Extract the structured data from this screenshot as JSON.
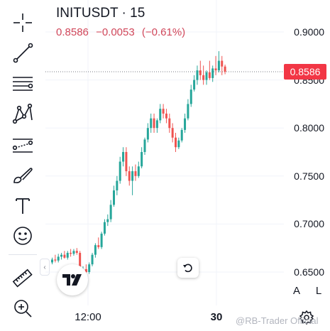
{
  "header": {
    "symbol": "INITUSDT · 15",
    "last": "0.8586",
    "change": "−0.0053",
    "change_pct": "(−0.61%)",
    "change_color": "#d1475a"
  },
  "price_axis": {
    "ticks": [
      "0.9000",
      "0.8500",
      "0.8000",
      "0.7500",
      "0.7000",
      "0.6500"
    ],
    "last_price_label": "0.8586",
    "last_price_color": "#f23645"
  },
  "time_axis": {
    "labels": [
      {
        "text": "12:00",
        "bold": false
      },
      {
        "text": "30",
        "bold": true
      }
    ]
  },
  "toolbar": {
    "tools": [
      "crosshair-icon",
      "trend-line-icon",
      "fib-retracement-icon",
      "pattern-icon",
      "prediction-icon",
      "brush-icon",
      "text-icon",
      "emoji-icon",
      "ruler-icon",
      "zoom-in-icon"
    ]
  },
  "buttons": {
    "auto_scale": "A",
    "log_scale": "L"
  },
  "watermark": "@RB-Trader Official",
  "colors": {
    "up": "#26a69a",
    "down": "#ef5350"
  },
  "chart_data": {
    "type": "candlestick",
    "ylim": [
      0.6,
      0.92
    ],
    "candles": [
      [
        0.66,
        0.665,
        0.658,
        0.663
      ],
      [
        0.663,
        0.668,
        0.66,
        0.662
      ],
      [
        0.662,
        0.669,
        0.66,
        0.666
      ],
      [
        0.666,
        0.67,
        0.663,
        0.668
      ],
      [
        0.668,
        0.672,
        0.664,
        0.665
      ],
      [
        0.665,
        0.672,
        0.663,
        0.67
      ],
      [
        0.67,
        0.674,
        0.666,
        0.669
      ],
      [
        0.669,
        0.674,
        0.667,
        0.672
      ],
      [
        0.672,
        0.675,
        0.668,
        0.67
      ],
      [
        0.67,
        0.672,
        0.64,
        0.645
      ],
      [
        0.645,
        0.656,
        0.642,
        0.653
      ],
      [
        0.653,
        0.658,
        0.648,
        0.65
      ],
      [
        0.65,
        0.66,
        0.648,
        0.658
      ],
      [
        0.658,
        0.67,
        0.656,
        0.668
      ],
      [
        0.668,
        0.68,
        0.665,
        0.678
      ],
      [
        0.678,
        0.686,
        0.674,
        0.676
      ],
      [
        0.676,
        0.692,
        0.674,
        0.69
      ],
      [
        0.69,
        0.705,
        0.688,
        0.702
      ],
      [
        0.702,
        0.71,
        0.698,
        0.705
      ],
      [
        0.705,
        0.725,
        0.702,
        0.72
      ],
      [
        0.72,
        0.74,
        0.718,
        0.735
      ],
      [
        0.735,
        0.75,
        0.73,
        0.745
      ],
      [
        0.745,
        0.77,
        0.742,
        0.765
      ],
      [
        0.765,
        0.78,
        0.76,
        0.775
      ],
      [
        0.775,
        0.78,
        0.75,
        0.755
      ],
      [
        0.755,
        0.76,
        0.74,
        0.745
      ],
      [
        0.745,
        0.76,
        0.73,
        0.755
      ],
      [
        0.755,
        0.762,
        0.745,
        0.75
      ],
      [
        0.75,
        0.765,
        0.748,
        0.76
      ],
      [
        0.76,
        0.78,
        0.758,
        0.775
      ],
      [
        0.775,
        0.79,
        0.772,
        0.788
      ],
      [
        0.788,
        0.805,
        0.785,
        0.8
      ],
      [
        0.8,
        0.815,
        0.795,
        0.81
      ],
      [
        0.81,
        0.815,
        0.795,
        0.8
      ],
      [
        0.8,
        0.81,
        0.795,
        0.808
      ],
      [
        0.808,
        0.825,
        0.805,
        0.82
      ],
      [
        0.82,
        0.825,
        0.81,
        0.815
      ],
      [
        0.815,
        0.82,
        0.805,
        0.81
      ],
      [
        0.81,
        0.815,
        0.795,
        0.8
      ],
      [
        0.8,
        0.805,
        0.785,
        0.79
      ],
      [
        0.79,
        0.795,
        0.775,
        0.78
      ],
      [
        0.78,
        0.79,
        0.778,
        0.787
      ],
      [
        0.787,
        0.8,
        0.785,
        0.798
      ],
      [
        0.798,
        0.815,
        0.795,
        0.81
      ],
      [
        0.81,
        0.83,
        0.808,
        0.825
      ],
      [
        0.825,
        0.845,
        0.822,
        0.84
      ],
      [
        0.84,
        0.855,
        0.838,
        0.85
      ],
      [
        0.85,
        0.865,
        0.845,
        0.86
      ],
      [
        0.86,
        0.87,
        0.85,
        0.855
      ],
      [
        0.855,
        0.865,
        0.845,
        0.85
      ],
      [
        0.85,
        0.86,
        0.845,
        0.858
      ],
      [
        0.858,
        0.87,
        0.85,
        0.852
      ],
      [
        0.852,
        0.865,
        0.848,
        0.862
      ],
      [
        0.862,
        0.875,
        0.855,
        0.86
      ],
      [
        0.86,
        0.88,
        0.858,
        0.87
      ],
      [
        0.87,
        0.875,
        0.855,
        0.864
      ],
      [
        0.864,
        0.866,
        0.856,
        0.8586
      ]
    ]
  }
}
